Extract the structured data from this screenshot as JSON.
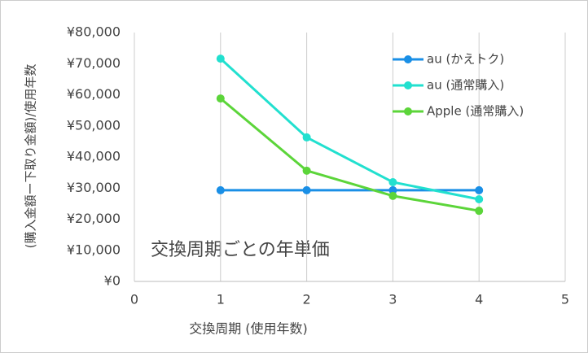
{
  "chart_data": {
    "type": "line",
    "y_label": "(購入金額ー下取り金額)/使用年数",
    "x_label": "交換周期 (使用年数)",
    "annotation": "交換周期ごとの年単価",
    "x": [
      1,
      2,
      3,
      4
    ],
    "series": [
      {
        "name": "au (かえトク)",
        "color": "#1a8fe6",
        "values": [
          29300,
          29300,
          29300,
          29300
        ]
      },
      {
        "name": "au (通常購入)",
        "color": "#22e0cf",
        "values": [
          71600,
          46300,
          31900,
          26400
        ]
      },
      {
        "name": "Apple (通常購入)",
        "color": "#5cd53a",
        "values": [
          58800,
          35600,
          27500,
          22700
        ]
      }
    ],
    "xlim": [
      0,
      5
    ],
    "xticks": [
      0,
      1,
      2,
      3,
      4,
      5
    ],
    "ylim": [
      0,
      80000
    ],
    "yticks": [
      {
        "value": 0,
        "label": "¥0"
      },
      {
        "value": 10000,
        "label": "¥10,000"
      },
      {
        "value": 20000,
        "label": "¥20,000"
      },
      {
        "value": 30000,
        "label": "¥30,000"
      },
      {
        "value": 40000,
        "label": "¥40,000"
      },
      {
        "value": 50000,
        "label": "¥50,000"
      },
      {
        "value": 60000,
        "label": "¥60,000"
      },
      {
        "value": 70000,
        "label": "¥70,000"
      },
      {
        "value": 80000,
        "label": "¥80,000"
      }
    ],
    "grid": "x",
    "legend": "top-right"
  }
}
